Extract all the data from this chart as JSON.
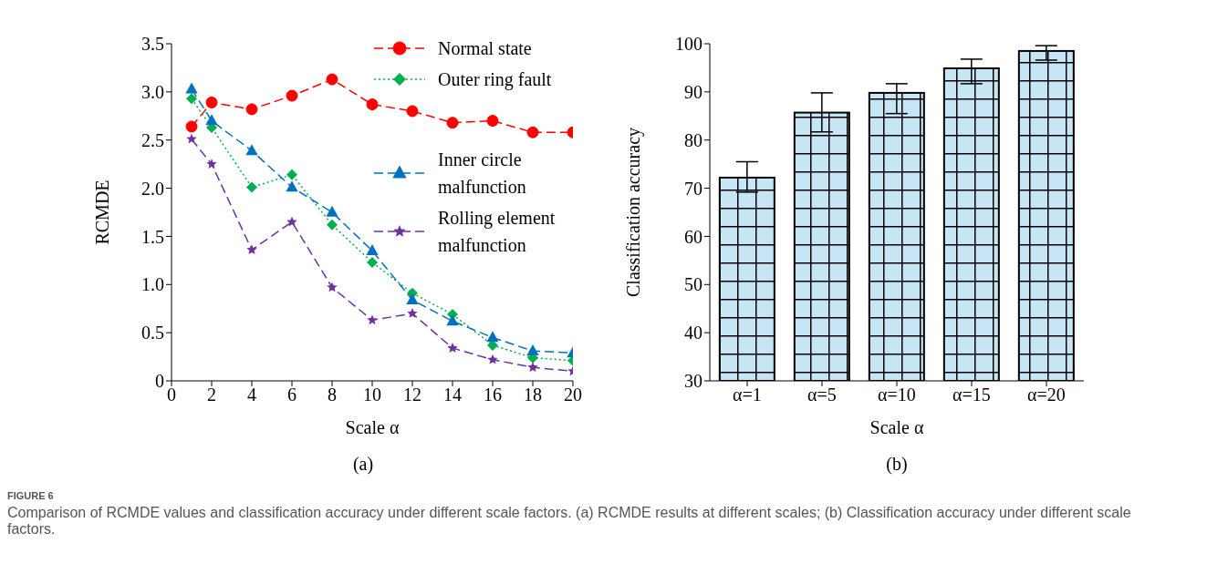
{
  "chart_data": [
    {
      "type": "line",
      "xlabel": "Scale α",
      "ylabel": "RCMDE",
      "x": [
        1,
        2,
        4,
        6,
        8,
        10,
        12,
        14,
        16,
        18,
        20
      ],
      "series": [
        {
          "name": "Normal state",
          "color": "#ff0000",
          "marker": "circle",
          "line_style": "dashed",
          "values": [
            2.64,
            2.89,
            2.82,
            2.96,
            3.13,
            2.87,
            2.8,
            2.68,
            2.7,
            2.58,
            2.58
          ]
        },
        {
          "name": "Outer ring fault",
          "color": "#00b050",
          "marker": "diamond",
          "line_style": "dotted",
          "values": [
            2.93,
            2.63,
            2.01,
            2.14,
            1.62,
            1.23,
            0.91,
            0.69,
            0.37,
            0.24,
            0.21
          ]
        },
        {
          "name": "Inner circle malfunction",
          "color": "#0070c0",
          "marker": "triangle",
          "line_style": "dashed",
          "values": [
            3.03,
            2.7,
            2.39,
            2.01,
            1.75,
            1.35,
            0.84,
            0.62,
            0.45,
            0.31,
            0.29
          ]
        },
        {
          "name": "Rolling element malfunction",
          "color": "#7030a0",
          "marker": "star",
          "line_style": "dashed",
          "values": [
            2.51,
            2.25,
            1.36,
            1.65,
            0.97,
            0.63,
            0.7,
            0.34,
            0.22,
            0.14,
            0.1
          ]
        }
      ],
      "xlim": [
        0,
        20
      ],
      "xticks": [
        0,
        2,
        4,
        6,
        8,
        10,
        12,
        14,
        16,
        18,
        20
      ],
      "ylim": [
        0,
        3.5
      ],
      "yticks": [
        0,
        {
          "value": 0.5,
          "label": "0.5"
        },
        {
          "value": 1,
          "label": "1.0"
        },
        {
          "value": 1.5,
          "label": "1.5"
        },
        {
          "value": 2,
          "label": "2.0"
        },
        {
          "value": 2.5,
          "label": "2.5"
        },
        {
          "value": 3,
          "label": "3.0"
        },
        {
          "value": 3.5,
          "label": "3.5"
        }
      ],
      "grid": false,
      "legend": "top right",
      "annotations": [
        "(a)",
        "FIGURE 6",
        "Comparison of RCMDE values and classification accuracy under different scale factors. (a) RCMDE results at different scales; (b) Classification accuracy under different scale factors."
      ]
    },
    {
      "type": "bar",
      "xlabel": "Scale α",
      "ylabel": "Classification accuracy",
      "categories": [
        "α=1",
        "α=5",
        "α=10",
        "α=15",
        "α=20"
      ],
      "values": [
        72.2,
        85.7,
        89.8,
        94.9,
        98.5
      ],
      "color": "#c6e6f6",
      "errors": [
        [
          69.2,
          75.5
        ],
        [
          81.7,
          89.8
        ],
        [
          85.5,
          91.7
        ],
        [
          91.7,
          96.8
        ],
        [
          96.6,
          99.6
        ]
      ],
      "ylim": [
        30,
        100
      ],
      "yticks": [
        30,
        40,
        50,
        60,
        70,
        80,
        90,
        100
      ],
      "grid": false,
      "legend": false,
      "annotations": [
        "(b)"
      ]
    }
  ]
}
